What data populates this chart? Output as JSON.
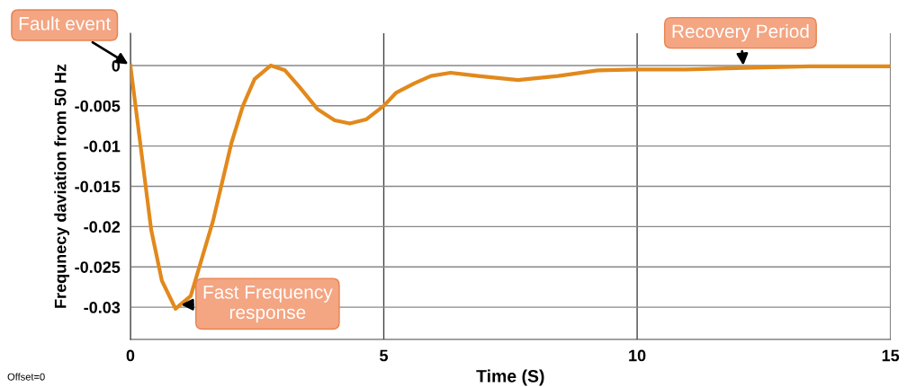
{
  "chart_data": {
    "type": "line",
    "xlabel": "Time (S)",
    "ylabel": "Frequnecy daviation from 50 Hz",
    "x": [
      0,
      0.41,
      0.62,
      0.89,
      1.19,
      1.63,
      1.99,
      2.22,
      2.45,
      2.77,
      3.05,
      3.34,
      3.69,
      4.03,
      4.33,
      4.65,
      5.0,
      5.24,
      5.61,
      5.93,
      6.32,
      6.86,
      7.65,
      8.44,
      9.22,
      10.0,
      10.94,
      12.1,
      13.4,
      15
    ],
    "series": [
      {
        "color": "#e2891c",
        "values": [
          0,
          -0.0204,
          -0.0267,
          -0.0302,
          -0.0286,
          -0.0193,
          -0.0097,
          -0.005,
          -0.0017,
          0,
          -0.0006,
          -0.0027,
          -0.0054,
          -0.0068,
          -0.0072,
          -0.0067,
          -0.005,
          -0.0034,
          -0.0022,
          -0.0013,
          -0.0009,
          -0.0013,
          -0.0018,
          -0.0013,
          -0.0006,
          -0.0005,
          -0.0005,
          -0.0003,
          -0.0001,
          -0.0001
        ]
      }
    ],
    "xlim": [
      0,
      15
    ],
    "xticks": [
      0,
      5,
      10,
      15
    ],
    "ylim": [
      -0.034,
      0.004
    ],
    "yticks": [
      {
        "value": 0,
        "label": "0"
      },
      -0.005,
      -0.01,
      -0.015,
      -0.02,
      -0.025,
      -0.03
    ],
    "grid": true,
    "annotations": [
      {
        "text": "Fault event",
        "x": 0,
        "y": 0
      },
      {
        "text": "Fast Frequency\nresponse",
        "x": 0.95,
        "y": -0.0297
      },
      {
        "text": "Recovery Period",
        "x": 12.1,
        "y": -0.0003
      },
      "Offset=0"
    ]
  }
}
